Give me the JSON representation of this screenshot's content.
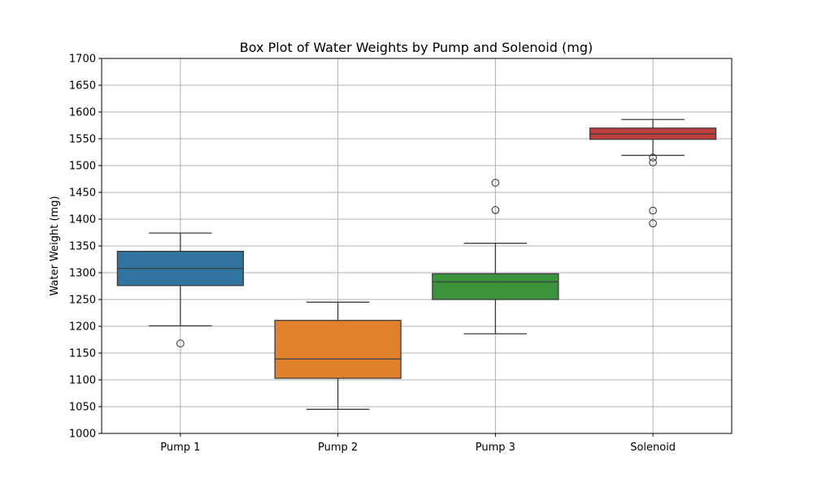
{
  "chart_data": {
    "type": "box",
    "title": "Box Plot of Water Weights by Pump and Solenoid (mg)",
    "xlabel": "",
    "ylabel": "Water Weight (mg)",
    "ylim": [
      1000,
      1700
    ],
    "yticks": [
      1000,
      1050,
      1100,
      1150,
      1200,
      1250,
      1300,
      1350,
      1400,
      1450,
      1500,
      1550,
      1600,
      1650,
      1700
    ],
    "grid": true,
    "legend": "none",
    "categories": [
      "Pump 1",
      "Pump 2",
      "Pump 3",
      "Solenoid"
    ],
    "boxes": [
      {
        "category": "Pump 1",
        "color": "#3274a1",
        "whisker_low": 1201,
        "q1": 1276,
        "median": 1308,
        "q3": 1340,
        "whisker_high": 1374,
        "outliers": [
          1168
        ]
      },
      {
        "category": "Pump 2",
        "color": "#e1812c",
        "whisker_low": 1045,
        "q1": 1103,
        "median": 1139,
        "q3": 1211,
        "whisker_high": 1245,
        "outliers": []
      },
      {
        "category": "Pump 3",
        "color": "#3a923a",
        "whisker_low": 1186,
        "q1": 1250,
        "median": 1283,
        "q3": 1298,
        "whisker_high": 1355,
        "outliers": [
          1417,
          1468
        ]
      },
      {
        "category": "Solenoid",
        "color": "#c03d3e",
        "whisker_low": 1519,
        "q1": 1549,
        "median": 1559,
        "q3": 1570,
        "whisker_high": 1586,
        "outliers": [
          1392,
          1416,
          1506,
          1515
        ]
      }
    ]
  }
}
